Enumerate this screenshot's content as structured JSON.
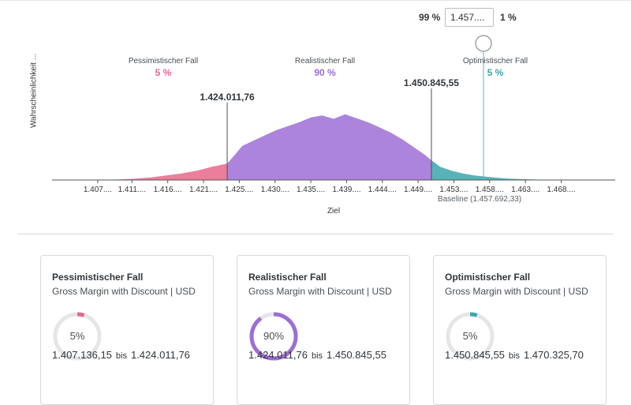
{
  "chart_data": {
    "type": "area",
    "title": "",
    "xlabel": "Ziel",
    "ylabel": "Wahrscheinlichkeit ...",
    "tick_labels": [
      "1.407....",
      "1.411....",
      "1.416....",
      "1.421....",
      "1.425....",
      "1.430....",
      "1.435....",
      "1.439....",
      "1.444....",
      "1.449....",
      "1.453....",
      "1.458....",
      "1.463....",
      "1.468...."
    ],
    "tick_values": [
      1407000,
      1411500,
      1416200,
      1420900,
      1425600,
      1430300,
      1435000,
      1439700,
      1444400,
      1449100,
      1453800,
      1458500,
      1463200,
      1467900
    ],
    "xlim": [
      1401000,
      1475000
    ],
    "ylim": [
      0,
      1.08
    ],
    "cut_low": 1424011.76,
    "cut_high": 1450845.55,
    "cut_low_label": "1.424.011,76",
    "cut_high_label": "1.450.845,55",
    "baseline": 1457692.33,
    "baseline_label": "Baseline (1.457.692,33)",
    "regions": [
      {
        "name": "Pessimistischer Fall",
        "percent": "5 %",
        "color": "#e8688a"
      },
      {
        "name": "Realistischer Fall",
        "percent": "90 %",
        "color": "#9d6ed6"
      },
      {
        "name": "Optimistischer Fall",
        "percent": "5 %",
        "color": "#3aa6ab"
      }
    ],
    "distribution": {
      "x": [
        1407000,
        1410000,
        1412000,
        1414000,
        1416000,
        1418000,
        1420000,
        1422000,
        1424011,
        1425000,
        1426000,
        1427500,
        1429000,
        1430500,
        1432000,
        1433500,
        1435000,
        1436500,
        1438000,
        1439500,
        1441000,
        1442500,
        1444000,
        1445500,
        1447000,
        1448500,
        1450000,
        1450845,
        1452000,
        1453500,
        1455000,
        1456500,
        1458000,
        1459500,
        1461000,
        1463000,
        1465000,
        1467000,
        1470000
      ],
      "y": [
        0.0,
        0.01,
        0.02,
        0.04,
        0.07,
        0.1,
        0.14,
        0.2,
        0.25,
        0.38,
        0.52,
        0.6,
        0.68,
        0.76,
        0.82,
        0.88,
        0.95,
        0.98,
        0.93,
        1.0,
        0.94,
        0.88,
        0.8,
        0.72,
        0.62,
        0.5,
        0.38,
        0.3,
        0.2,
        0.14,
        0.1,
        0.07,
        0.05,
        0.035,
        0.02,
        0.012,
        0.006,
        0.003,
        0.0
      ]
    }
  },
  "threshold": {
    "left_pct": "99 %",
    "value": "1.457....",
    "right_pct": "1 %"
  },
  "cards": [
    {
      "title": "Pessimistischer Fall",
      "subtitle": "Gross Margin with Discount | USD",
      "percent_label": "5%",
      "fraction": 0.05,
      "color": "#e8688a",
      "from": "1.407.136,15",
      "bis": "bis",
      "to": "1.424.011,76"
    },
    {
      "title": "Realistischer Fall",
      "subtitle": "Gross Margin with Discount | USD",
      "percent_label": "90%",
      "fraction": 0.9,
      "color": "#9d6ed6",
      "from": "1.424.011,76",
      "bis": "bis",
      "to": "1.450.845,55"
    },
    {
      "title": "Optimistischer Fall",
      "subtitle": "Gross Margin with Discount | USD",
      "percent_label": "5%",
      "fraction": 0.05,
      "color": "#3aa6ab",
      "from": "1.450.845,55",
      "bis": "bis",
      "to": "1.470.325,70"
    }
  ]
}
